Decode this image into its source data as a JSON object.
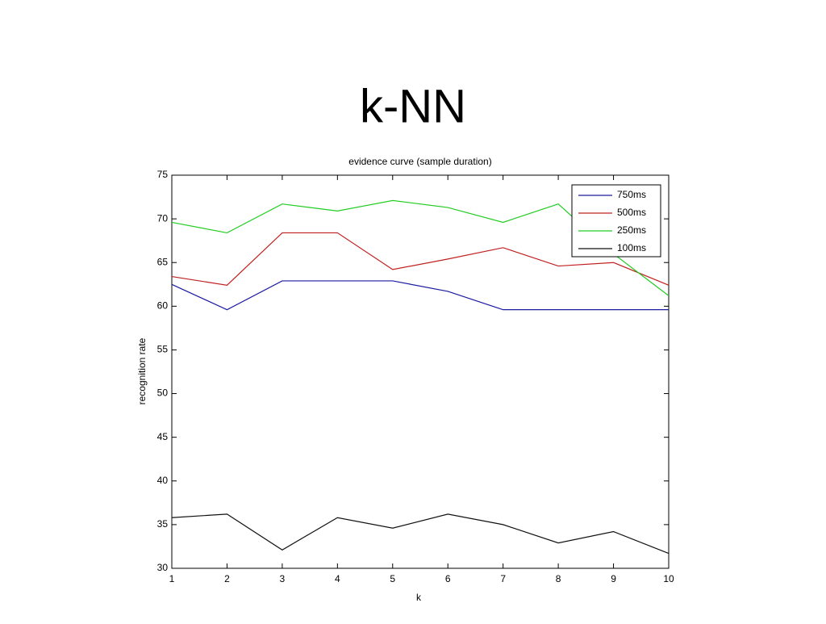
{
  "slide_title": "k-NN",
  "chart_data": {
    "type": "line",
    "title": "evidence curve (sample duration)",
    "x_label": "k",
    "y_label": "recognition rate",
    "x": [
      1,
      2,
      3,
      4,
      5,
      6,
      7,
      8,
      9,
      10
    ],
    "series": [
      {
        "name": "750ms",
        "color": "#1a1aa0",
        "values": [
          62.5,
          59.6,
          62.9,
          62.9,
          62.9,
          61.7,
          59.6,
          59.6,
          59.6,
          59.6
        ]
      },
      {
        "name": "500ms",
        "color": "#c0201f",
        "values": [
          63.4,
          62.4,
          68.4,
          68.4,
          64.2,
          65.4,
          66.7,
          64.6,
          65.0,
          62.4
        ]
      },
      {
        "name": "250ms",
        "color": "#22cc22",
        "values": [
          69.6,
          68.4,
          71.7,
          70.9,
          72.1,
          71.3,
          69.6,
          71.7,
          66.0,
          61.2
        ]
      },
      {
        "name": "100ms",
        "color": "#111111",
        "values": [
          35.8,
          36.2,
          32.1,
          35.8,
          34.6,
          36.2,
          35.0,
          32.9,
          34.2,
          31.7
        ]
      }
    ],
    "xlim": [
      1,
      10
    ],
    "xticks": [
      1,
      2,
      3,
      4,
      5,
      6,
      7,
      8,
      9,
      10
    ],
    "ylim": [
      30,
      75
    ],
    "yticks": [
      30,
      35,
      40,
      45,
      50,
      55,
      60,
      65,
      70,
      75
    ],
    "grid": false,
    "legend": "upper right"
  }
}
